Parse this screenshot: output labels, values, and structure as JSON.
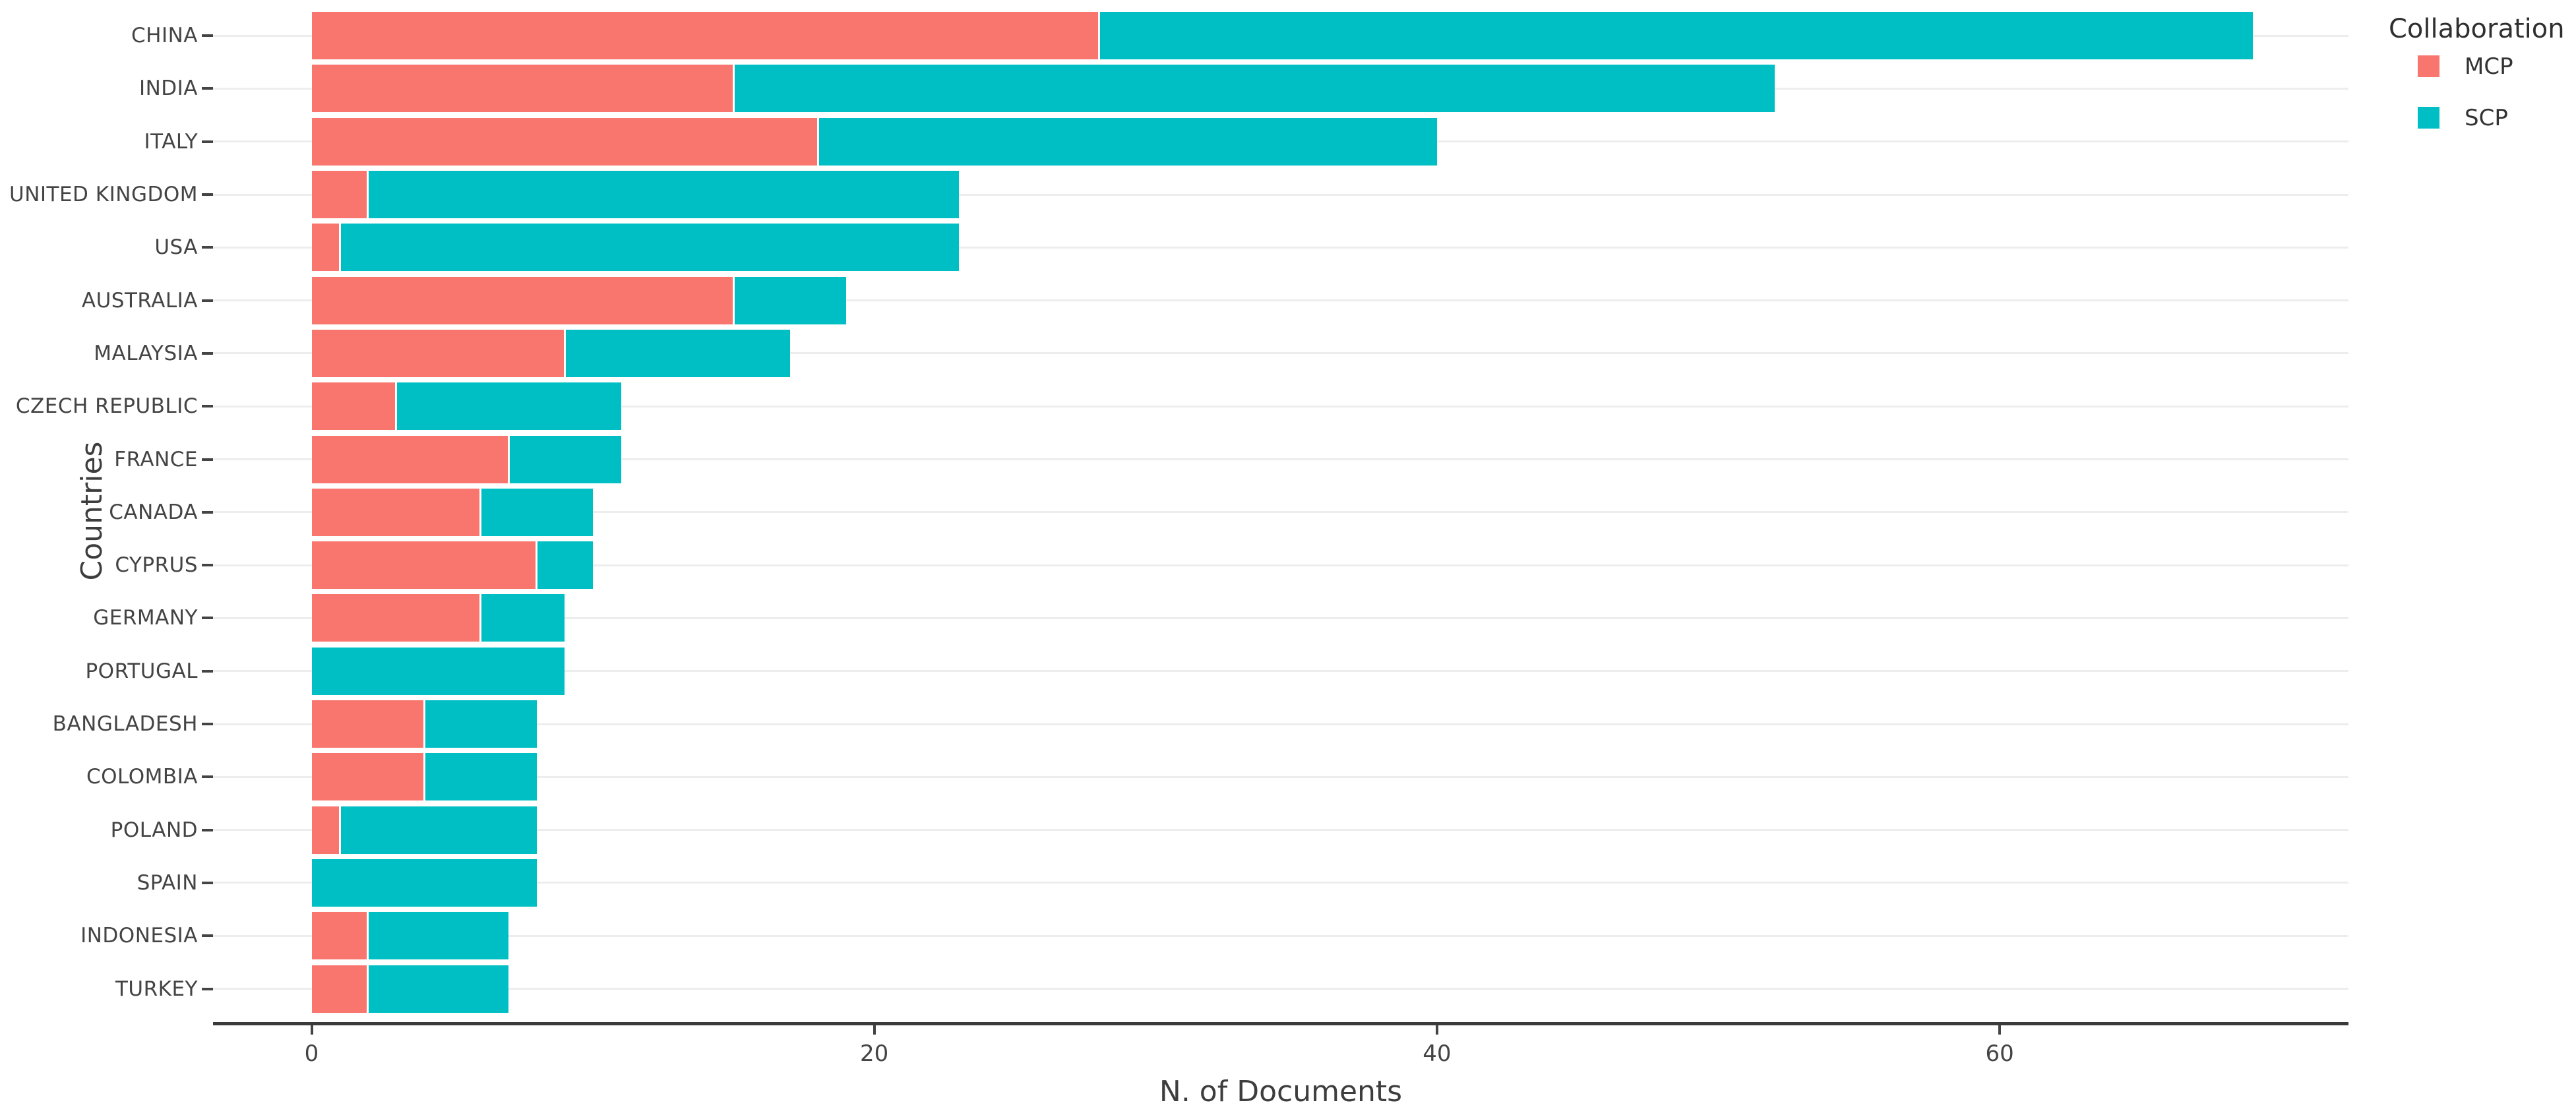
{
  "chart_data": {
    "type": "bar",
    "orientation": "horizontal",
    "stacked": true,
    "title": "",
    "xlabel": "N. of Documents",
    "ylabel": "Countries",
    "x_ticks": [
      0,
      20,
      40,
      60
    ],
    "xlim": [
      0,
      72.4
    ],
    "grid": "horizontal category gridlines only, light gray",
    "legend": {
      "title": "Collaboration",
      "position": "top-right",
      "entries": [
        {
          "label": "MCP",
          "color": "#F8766D"
        },
        {
          "label": "SCP",
          "color": "#00BFC4"
        }
      ]
    },
    "categories": [
      "CHINA",
      "INDIA",
      "ITALY",
      "UNITED KINGDOM",
      "USA",
      "AUSTRALIA",
      "MALAYSIA",
      "CZECH REPUBLIC",
      "FRANCE",
      "CANADA",
      "CYPRUS",
      "GERMANY",
      "PORTUGAL",
      "BANGLADESH",
      "COLOMBIA",
      "POLAND",
      "SPAIN",
      "INDONESIA",
      "TURKEY"
    ],
    "series": [
      {
        "name": "MCP",
        "color": "#F8766D",
        "values": [
          28,
          15,
          18,
          2,
          1,
          15,
          9,
          3,
          7,
          6,
          8,
          6,
          0,
          4,
          4,
          1,
          0,
          2,
          2
        ]
      },
      {
        "name": "SCP",
        "color": "#00BFC4",
        "values": [
          41,
          37,
          22,
          21,
          22,
          4,
          8,
          8,
          4,
          4,
          2,
          3,
          9,
          4,
          4,
          7,
          8,
          5,
          5
        ]
      }
    ],
    "totals": [
      69,
      52,
      40,
      23,
      23,
      19,
      17,
      11,
      11,
      10,
      10,
      9,
      9,
      8,
      8,
      8,
      8,
      7,
      7
    ]
  },
  "colors": {
    "mcp": "#F8766D",
    "scp": "#00BFC4",
    "axis_line": "#3a3a3a",
    "tick_text": "#444444",
    "axis_title_text": "#3d3d3d",
    "gridline": "#ededed",
    "background": "#ffffff"
  }
}
